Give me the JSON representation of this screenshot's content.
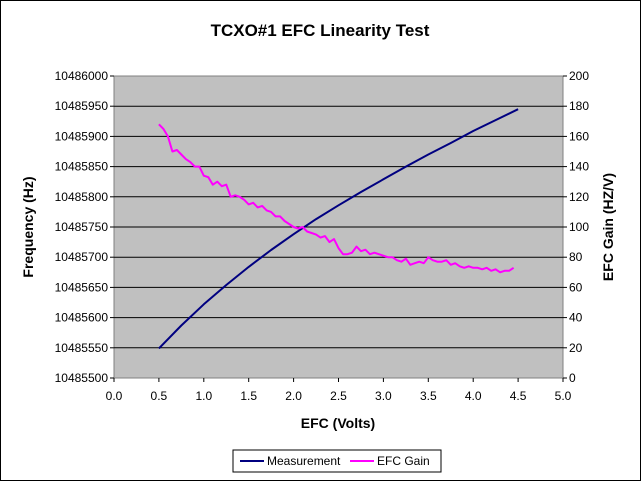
{
  "chart_data": {
    "type": "line",
    "title": "TCXO#1 EFC Linearity Test",
    "xlabel": "EFC (Volts)",
    "ylabel": "Frequency (Hz)",
    "y2label": "EFC Gain (HZ/V)",
    "xlim": [
      0,
      5
    ],
    "ylim": [
      10485500,
      10486000
    ],
    "y2lim": [
      0,
      200
    ],
    "x_ticks": [
      "0.0",
      "0.5",
      "1.0",
      "1.5",
      "2.0",
      "2.5",
      "3.0",
      "3.5",
      "4.0",
      "4.5",
      "5.0"
    ],
    "y_ticks": [
      "10485500",
      "10485550",
      "10485600",
      "10485650",
      "10485700",
      "10485750",
      "10485800",
      "10485850",
      "10485900",
      "10485950",
      "10486000"
    ],
    "y2_ticks": [
      "0",
      "20",
      "40",
      "60",
      "80",
      "100",
      "120",
      "140",
      "160",
      "180",
      "200"
    ],
    "grid": true,
    "legend_position": "bottom",
    "colors": {
      "plot_bg": "#c0c0c0",
      "measurement": "#000080",
      "efc_gain": "#ff00ff"
    },
    "series": [
      {
        "name": "Measurement",
        "axis": "left",
        "x": [
          0.5,
          0.75,
          1.0,
          1.25,
          1.5,
          1.75,
          2.0,
          2.25,
          2.5,
          2.75,
          3.0,
          3.25,
          3.5,
          3.75,
          4.0,
          4.25,
          4.5
        ],
        "values": [
          10485549,
          10485587,
          10485622,
          10485654,
          10485684,
          10485712,
          10485738,
          10485763,
          10485786,
          10485808,
          10485829,
          10485850,
          10485870,
          10485889,
          10485909,
          10485927,
          10485945
        ]
      },
      {
        "name": "EFC Gain",
        "axis": "right",
        "x": [
          0.5,
          0.55,
          0.6,
          0.65,
          0.7,
          0.75,
          0.8,
          0.85,
          0.9,
          0.95,
          1.0,
          1.05,
          1.1,
          1.15,
          1.2,
          1.25,
          1.3,
          1.35,
          1.4,
          1.45,
          1.5,
          1.55,
          1.6,
          1.65,
          1.7,
          1.75,
          1.8,
          1.85,
          1.9,
          1.95,
          2.0,
          2.05,
          2.1,
          2.15,
          2.2,
          2.25,
          2.3,
          2.35,
          2.4,
          2.45,
          2.5,
          2.55,
          2.6,
          2.65,
          2.7,
          2.75,
          2.8,
          2.85,
          2.9,
          2.95,
          3.0,
          3.05,
          3.1,
          3.15,
          3.2,
          3.25,
          3.3,
          3.35,
          3.4,
          3.45,
          3.5,
          3.55,
          3.6,
          3.65,
          3.7,
          3.75,
          3.8,
          3.85,
          3.9,
          3.95,
          4.0,
          4.05,
          4.1,
          4.15,
          4.2,
          4.25,
          4.3,
          4.35,
          4.4,
          4.45
        ],
        "values": [
          168,
          165,
          160,
          150,
          151,
          148,
          145,
          143,
          140,
          140,
          134,
          133,
          128,
          130,
          127,
          128,
          120,
          121,
          120,
          118,
          115,
          116,
          113,
          114,
          111,
          110,
          107,
          107,
          104,
          102,
          100,
          99,
          100,
          97,
          96,
          95,
          93,
          94,
          90,
          92,
          86,
          82,
          82,
          83,
          87,
          84,
          85,
          82,
          83,
          82,
          81,
          80,
          80,
          78,
          77,
          79,
          75,
          76,
          77,
          76,
          80,
          78,
          77,
          77,
          78,
          75,
          76,
          74,
          73,
          74,
          73,
          73,
          72,
          73,
          71,
          72,
          70,
          71,
          71,
          73
        ]
      }
    ]
  }
}
